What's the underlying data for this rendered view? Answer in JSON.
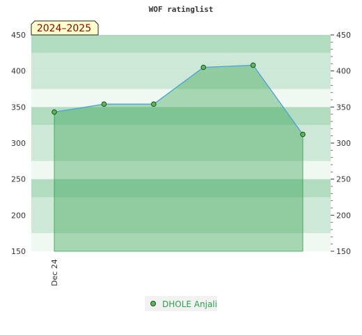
{
  "chart_data": {
    "type": "area",
    "title": "WOF ratinglist",
    "season_label": "2024–2025",
    "ylim": [
      150,
      450
    ],
    "y_ticks": [
      150,
      200,
      250,
      300,
      350,
      400,
      450
    ],
    "x_tick_labels": [
      "Dec 24"
    ],
    "series": [
      {
        "name": "DHOLE Anjali",
        "values": [
          343,
          354,
          354,
          405,
          408,
          312
        ]
      }
    ],
    "grid": true,
    "legend": "bottom-center",
    "colors": {
      "line": "#4aa3d8",
      "area": "#2e9e4a",
      "marker": "#5cb85c",
      "band_dark": "#b2dcc0",
      "band_mid": "#cde8d6",
      "band_light": "#f0f8f2",
      "season_box": "#ffffcc"
    }
  }
}
